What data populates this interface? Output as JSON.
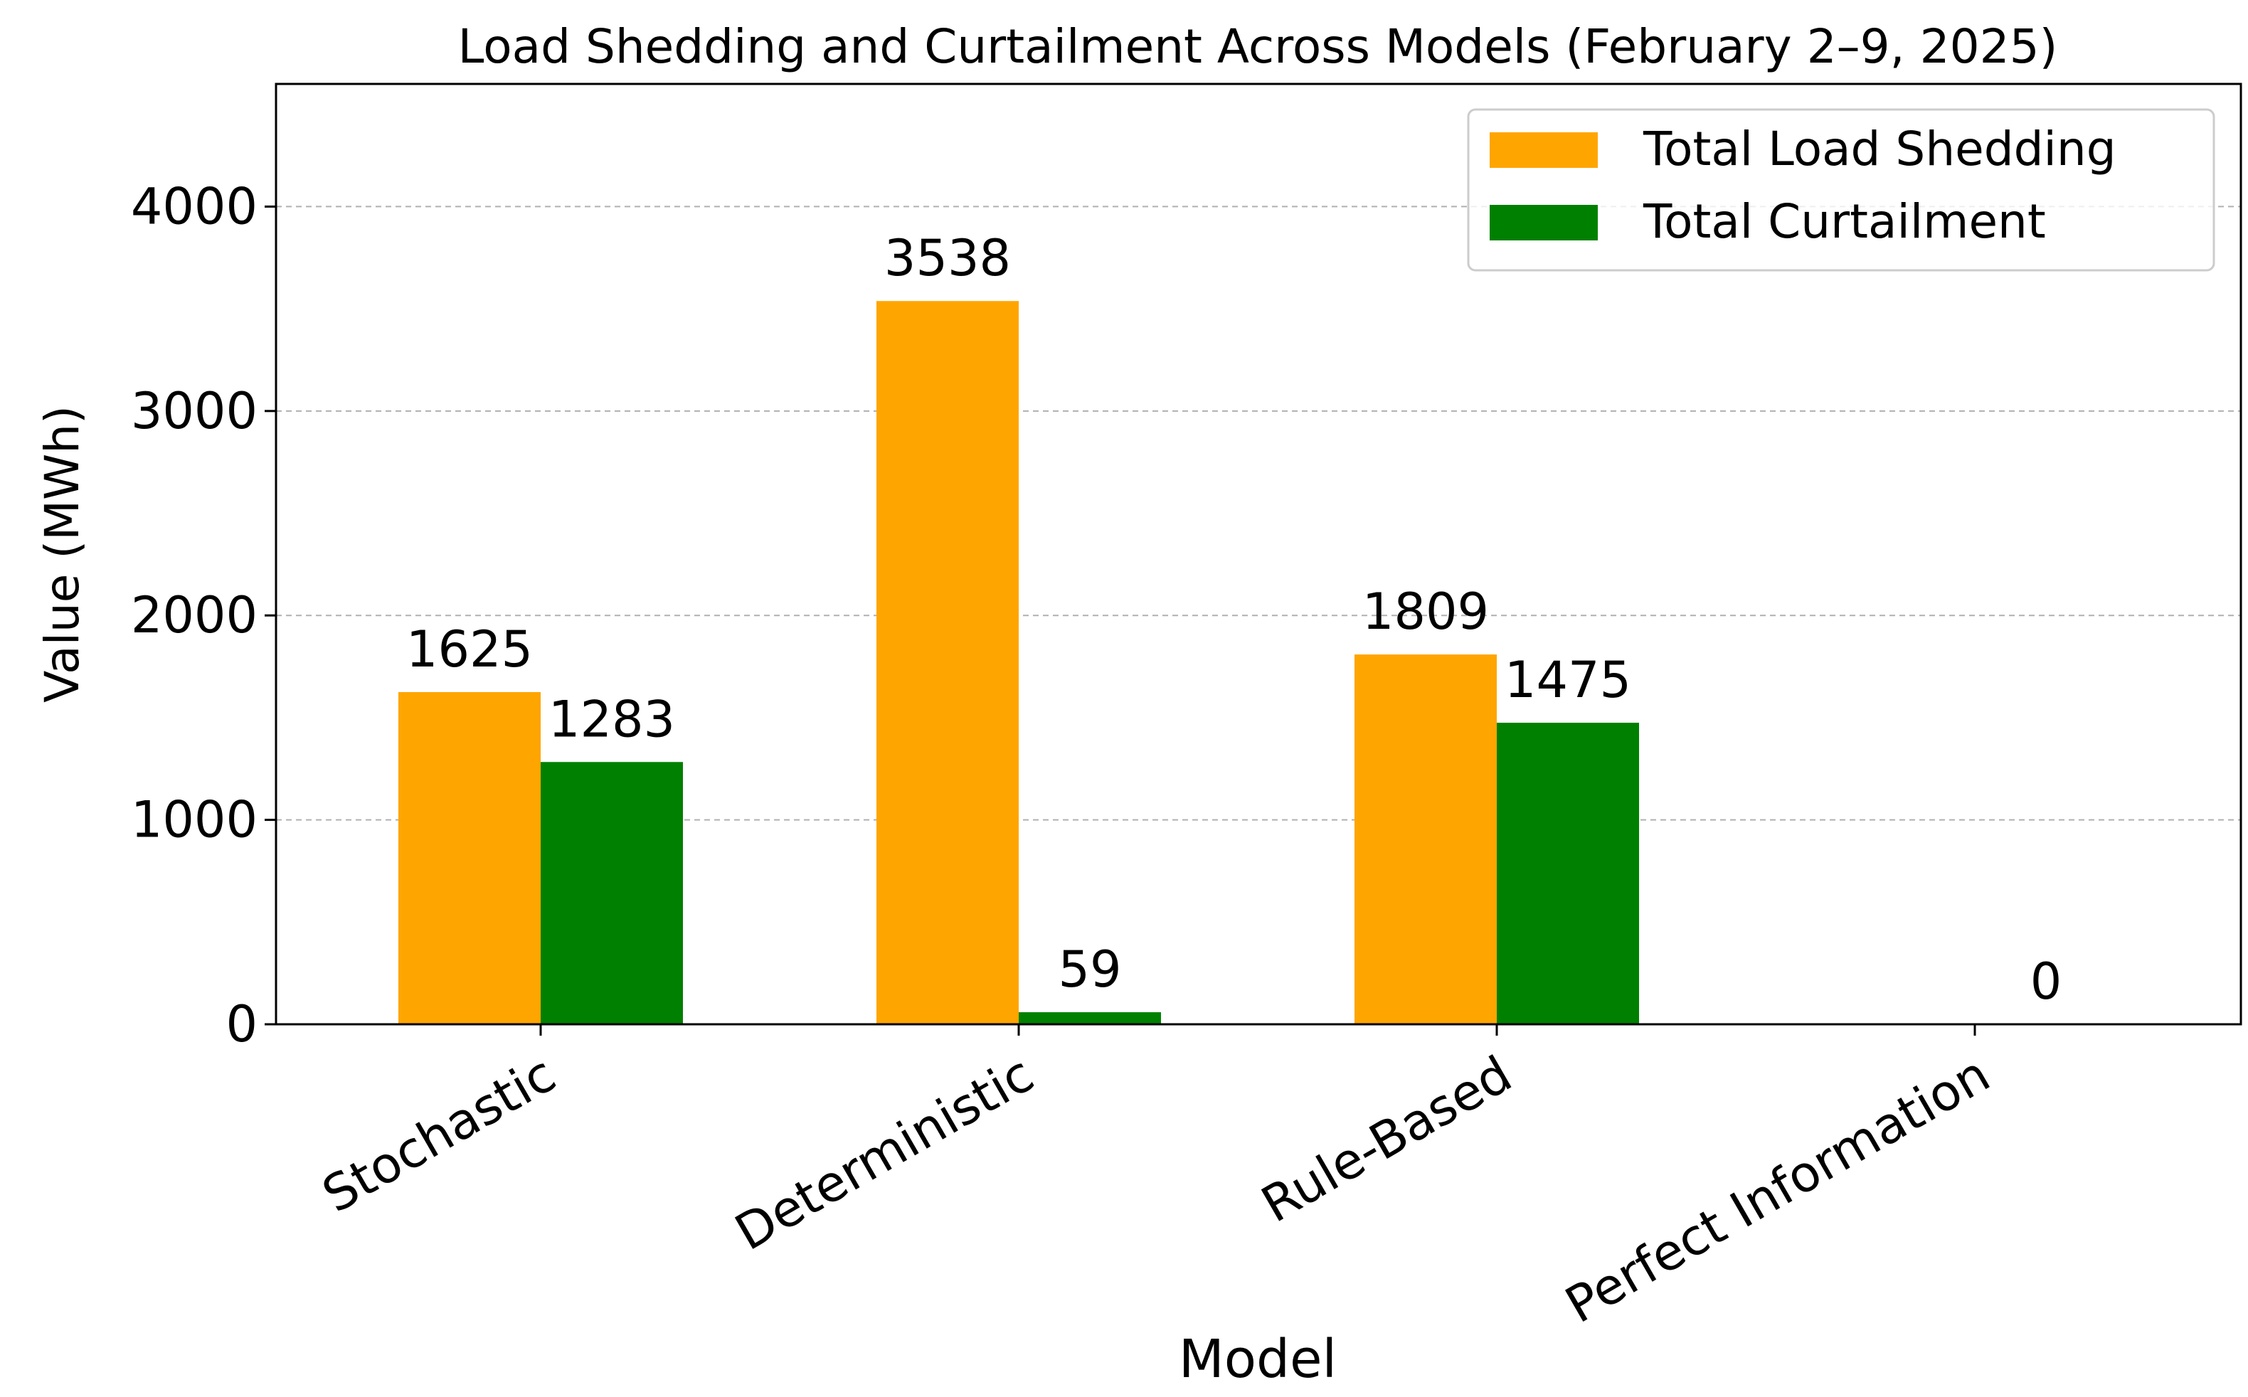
{
  "chart_data": {
    "type": "bar",
    "title": "Load Shedding and Curtailment Across Models (February 2–9, 2025)",
    "xlabel": "Model",
    "ylabel": "Value (MWh)",
    "categories": [
      "Stochastic",
      "Deterministic",
      "Rule-Based",
      "Perfect Information"
    ],
    "series": [
      {
        "name": "Total Load Shedding",
        "color": "#FFA500",
        "values": [
          1625,
          3538,
          1809,
          0
        ]
      },
      {
        "name": "Total Curtailment",
        "color": "#008000",
        "values": [
          1283,
          59,
          1475,
          0
        ]
      }
    ],
    "data_labels": [
      [
        "1625",
        "3538",
        "1809",
        ""
      ],
      [
        "1283",
        "59",
        "1475",
        "0"
      ]
    ],
    "yticks": [
      0,
      1000,
      2000,
      3000,
      4000
    ],
    "ylim": [
      0,
      4600
    ],
    "grid": "y-dashed",
    "legend_position": "top-right"
  }
}
